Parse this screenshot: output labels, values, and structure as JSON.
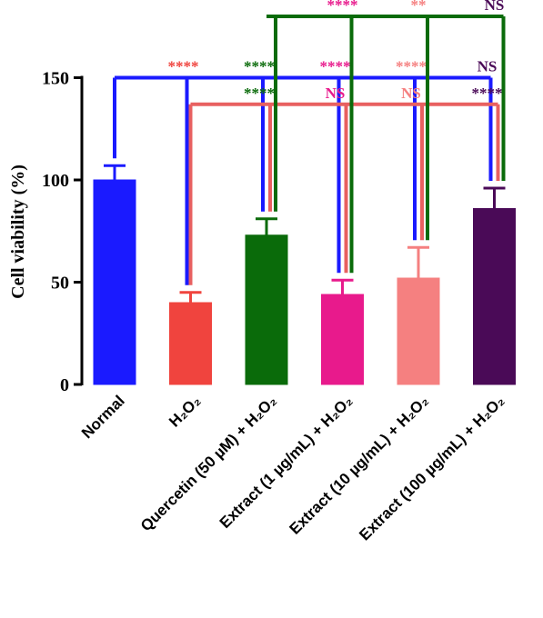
{
  "chart_data": {
    "type": "bar",
    "ylabel": "Cell viability (%)",
    "xlabel": "",
    "ylim": [
      0,
      150
    ],
    "yticks": [
      "0",
      "50",
      "100",
      "150"
    ],
    "categories": [
      "Normal",
      "H2O2",
      "Quercetin (50 µM) + H2O2",
      "Extract (1 µg/mL) + H2O2",
      "Extract (10 µg/mL) + H2O2",
      "Extract (100 µg/mL) + H2O2"
    ],
    "values": [
      100,
      40,
      73,
      44,
      52,
      86
    ],
    "errors": [
      7,
      5,
      8,
      7,
      15,
      10
    ],
    "colors": [
      "#1a1aff",
      "#f0443e",
      "#0a6b0a",
      "#e81a8c",
      "#f58080",
      "#4a0a57"
    ],
    "comparisons": [
      {
        "reference": "Normal",
        "color": "#1a1aff",
        "level": 150,
        "targets": [
          "H2O2",
          "Quercetin (50 µM) + H2O2",
          "Extract (1 µg/mL) + H2O2",
          "Extract (10 µg/mL) + H2O2",
          "Extract (100 µg/mL) + H2O2"
        ],
        "labels": [
          {
            "text": "****",
            "color": "#f0443e"
          },
          {
            "text": "****",
            "color": "#0a6b0a"
          },
          {
            "text": "****",
            "color": "#e81a8c"
          },
          {
            "text": "****",
            "color": "#f58080"
          },
          {
            "text": "NS",
            "color": "#4a0a57"
          }
        ]
      },
      {
        "reference": "H2O2",
        "color": "#e86060",
        "level": 137,
        "targets": [
          "Quercetin (50 µM) + H2O2",
          "Extract (1 µg/mL) + H2O2",
          "Extract (10 µg/mL) + H2O2",
          "Extract (100 µg/mL) + H2O2"
        ],
        "labels": [
          {
            "text": "****",
            "color": "#0a6b0a"
          },
          {
            "text": "NS",
            "color": "#e81a8c"
          },
          {
            "text": "NS",
            "color": "#f58080"
          },
          {
            "text": "****",
            "color": "#4a0a57"
          }
        ]
      },
      {
        "reference": "Quercetin (50 µM) + H2O2",
        "color": "#0a6b0a",
        "level": 180,
        "targets": [
          "Extract (1 µg/mL) + H2O2",
          "Extract (10 µg/mL) + H2O2",
          "Extract (100 µg/mL) + H2O2"
        ],
        "labels": [
          {
            "text": "****",
            "color": "#e81a8c"
          },
          {
            "text": "**",
            "color": "#f58080"
          },
          {
            "text": "NS",
            "color": "#4a0a57"
          }
        ]
      }
    ]
  }
}
